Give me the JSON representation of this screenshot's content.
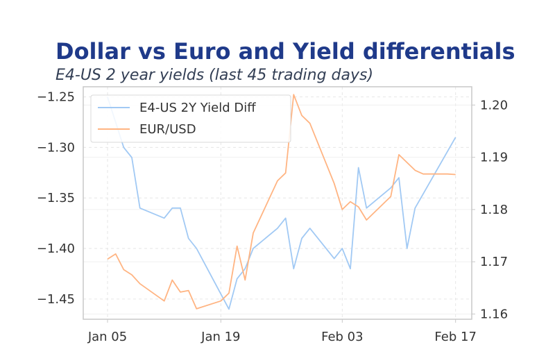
{
  "title": "Dollar vs Euro and Yield differentials",
  "subtitle": "E4-US 2 year yields (last 45 trading days)",
  "colors": {
    "yield": "#a1c9f4",
    "eurusd": "#ffb482",
    "title": "#1f3a8a",
    "grid": "#e6e6e6",
    "frame": "#c8c8c8"
  },
  "chart_data": {
    "type": "line",
    "title": "Dollar vs Euro and Yield differentials",
    "subtitle": "E4-US 2 year yields (last 45 trading days)",
    "x_ticks": [
      {
        "label": "Jan 05",
        "x": "2026-01-05"
      },
      {
        "label": "Jan 19",
        "x": "2026-01-19"
      },
      {
        "label": "Feb 03",
        "x": "2026-02-03"
      },
      {
        "label": "Feb 17",
        "x": "2026-02-17"
      }
    ],
    "xlim": [
      "2026-01-02",
      "2026-02-19"
    ],
    "y_left": {
      "lim": [
        -1.47,
        -1.24
      ],
      "ticks": [
        -1.25,
        -1.3,
        -1.35,
        -1.4,
        -1.45
      ],
      "tick_labels": [
        "−1.25",
        "−1.30",
        "−1.35",
        "−1.40",
        "−1.45"
      ]
    },
    "y_right": {
      "lim": [
        1.159,
        1.2035
      ],
      "ticks": [
        1.16,
        1.17,
        1.18,
        1.19,
        1.2
      ],
      "tick_labels": [
        "1.16",
        "1.17",
        "1.18",
        "1.19",
        "1.20"
      ]
    },
    "grid": true,
    "legend": "top-left",
    "series": [
      {
        "name": "E4-US 2Y Yield Diff",
        "axis": "left",
        "color": "#a1c9f4",
        "points": [
          [
            "2026-01-05",
            -1.25
          ],
          [
            "2026-01-07",
            -1.3
          ],
          [
            "2026-01-08",
            -1.31
          ],
          [
            "2026-01-09",
            -1.36
          ],
          [
            "2026-01-12",
            -1.37
          ],
          [
            "2026-01-13",
            -1.36
          ],
          [
            "2026-01-14",
            -1.36
          ],
          [
            "2026-01-15",
            -1.39
          ],
          [
            "2026-01-16",
            -1.4
          ],
          [
            "2026-01-20",
            -1.46
          ],
          [
            "2026-01-21",
            -1.43
          ],
          [
            "2026-01-22",
            -1.42
          ],
          [
            "2026-01-23",
            -1.4
          ],
          [
            "2026-01-26",
            -1.38
          ],
          [
            "2026-01-27",
            -1.37
          ],
          [
            "2026-01-28",
            -1.42
          ],
          [
            "2026-01-29",
            -1.39
          ],
          [
            "2026-01-30",
            -1.38
          ],
          [
            "2026-02-02",
            -1.41
          ],
          [
            "2026-02-03",
            -1.4
          ],
          [
            "2026-02-04",
            -1.42
          ],
          [
            "2026-02-05",
            -1.32
          ],
          [
            "2026-02-06",
            -1.36
          ],
          [
            "2026-02-09",
            -1.34
          ],
          [
            "2026-02-10",
            -1.33
          ],
          [
            "2026-02-11",
            -1.4
          ],
          [
            "2026-02-12",
            -1.36
          ],
          [
            "2026-02-17",
            -1.29
          ]
        ]
      },
      {
        "name": "EUR/USD",
        "axis": "right",
        "color": "#ffb482",
        "points": [
          [
            "2026-01-05",
            1.1705
          ],
          [
            "2026-01-06",
            1.1715
          ],
          [
            "2026-01-07",
            1.1685
          ],
          [
            "2026-01-08",
            1.1675
          ],
          [
            "2026-01-09",
            1.1658
          ],
          [
            "2026-01-12",
            1.1625
          ],
          [
            "2026-01-13",
            1.1665
          ],
          [
            "2026-01-14",
            1.1642
          ],
          [
            "2026-01-15",
            1.1645
          ],
          [
            "2026-01-16",
            1.161
          ],
          [
            "2026-01-19",
            1.1625
          ],
          [
            "2026-01-20",
            1.164
          ],
          [
            "2026-01-21",
            1.173
          ],
          [
            "2026-01-22",
            1.1665
          ],
          [
            "2026-01-23",
            1.1755
          ],
          [
            "2026-01-26",
            1.1855
          ],
          [
            "2026-01-27",
            1.187
          ],
          [
            "2026-01-28",
            1.202
          ],
          [
            "2026-01-29",
            1.198
          ],
          [
            "2026-01-30",
            1.1965
          ],
          [
            "2026-02-02",
            1.185
          ],
          [
            "2026-02-03",
            1.18
          ],
          [
            "2026-02-04",
            1.1815
          ],
          [
            "2026-02-05",
            1.1805
          ],
          [
            "2026-02-06",
            1.178
          ],
          [
            "2026-02-09",
            1.1825
          ],
          [
            "2026-02-10",
            1.1905
          ],
          [
            "2026-02-12",
            1.1875
          ],
          [
            "2026-02-13",
            1.1868
          ],
          [
            "2026-02-16",
            1.1868
          ],
          [
            "2026-02-17",
            1.1867
          ]
        ]
      }
    ]
  }
}
